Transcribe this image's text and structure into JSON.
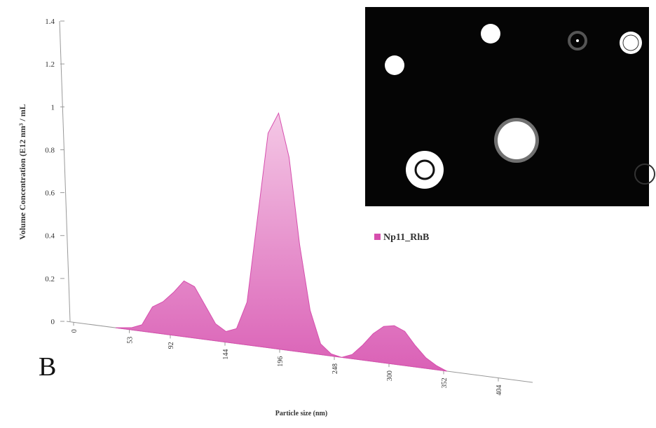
{
  "chart_data": {
    "type": "area",
    "panel_label": "B",
    "y_label": "Volume Concentration (E12 nm³ / mL",
    "x_label": "Particle size (nm)",
    "series": [
      {
        "name": "Np11_RhB",
        "color": "#d64fae",
        "x": [
          40,
          55,
          65,
          75,
          85,
          95,
          105,
          115,
          125,
          135,
          145,
          155,
          165,
          175,
          185,
          195,
          205,
          215,
          225,
          235,
          245,
          255,
          265,
          275,
          285,
          295,
          305,
          315,
          325,
          335,
          345,
          355
        ],
        "values": [
          0,
          0.01,
          0.03,
          0.12,
          0.15,
          0.2,
          0.26,
          0.24,
          0.16,
          0.08,
          0.05,
          0.07,
          0.2,
          0.6,
          1.0,
          1.1,
          0.9,
          0.5,
          0.2,
          0.05,
          0.01,
          0,
          0.02,
          0.07,
          0.13,
          0.17,
          0.18,
          0.16,
          0.1,
          0.05,
          0.02,
          0
        ]
      }
    ],
    "xlim": [
      0,
      420
    ],
    "xticks": [
      0,
      53,
      92,
      144,
      196,
      248,
      300,
      352,
      404
    ],
    "ylim": [
      0,
      1.4
    ],
    "yticks": [
      0,
      0.2,
      0.4,
      0.6,
      0.8,
      1,
      1.2,
      1.4
    ]
  }
}
